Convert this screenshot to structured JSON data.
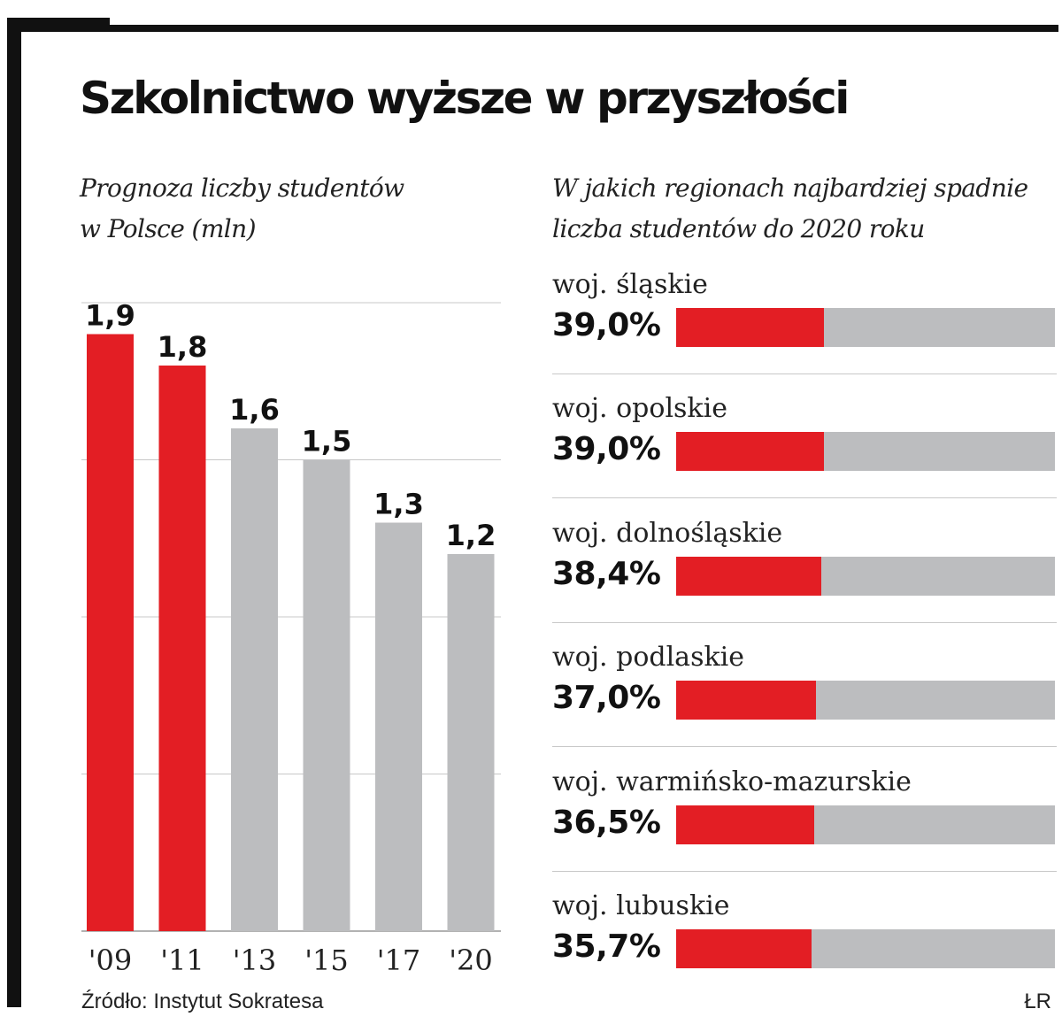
{
  "title": "Szkolnictwo wyższe w przyszłości",
  "colors": {
    "accent": "#e31e24",
    "neutral": "#bcbdbf",
    "ink": "#111111"
  },
  "chart_data": [
    {
      "type": "bar",
      "title": "Prognoza liczby studentów w Polsce (mln)",
      "title_lines": [
        "Prognoza liczby studentów",
        "w Polsce (mln)"
      ],
      "categories": [
        "'09",
        "'11",
        "'13",
        "'15",
        "'17",
        "'20"
      ],
      "values": [
        1.9,
        1.8,
        1.6,
        1.5,
        1.3,
        1.2
      ],
      "value_labels": [
        "1,9",
        "1,8",
        "1,6",
        "1,5",
        "1,3",
        "1,2"
      ],
      "highlight": [
        true,
        true,
        false,
        false,
        false,
        false
      ],
      "ylim": [
        0,
        2.0
      ],
      "grid": true,
      "xlabel": "",
      "ylabel": ""
    },
    {
      "type": "bar",
      "orientation": "horizontal",
      "title": "W jakich regionach najbardziej spadnie liczba studentów do 2020 roku",
      "title_lines": [
        "W jakich regionach najbardziej spadnie",
        "liczba studentów do 2020 roku"
      ],
      "categories": [
        "woj. śląskie",
        "woj. opolskie",
        "woj. dolnośląskie",
        "woj. podlaskie",
        "woj. warmińsko-mazurskie",
        "woj. lubuskie"
      ],
      "values": [
        39.0,
        39.0,
        38.4,
        37.0,
        36.5,
        35.7
      ],
      "value_labels": [
        "39,0%",
        "39,0%",
        "38,4%",
        "37,0%",
        "36,5%",
        "35,7%"
      ],
      "xlim": [
        0,
        100
      ]
    }
  ],
  "source": "Źródło: Instytut Sokratesa",
  "credit": "ŁR"
}
